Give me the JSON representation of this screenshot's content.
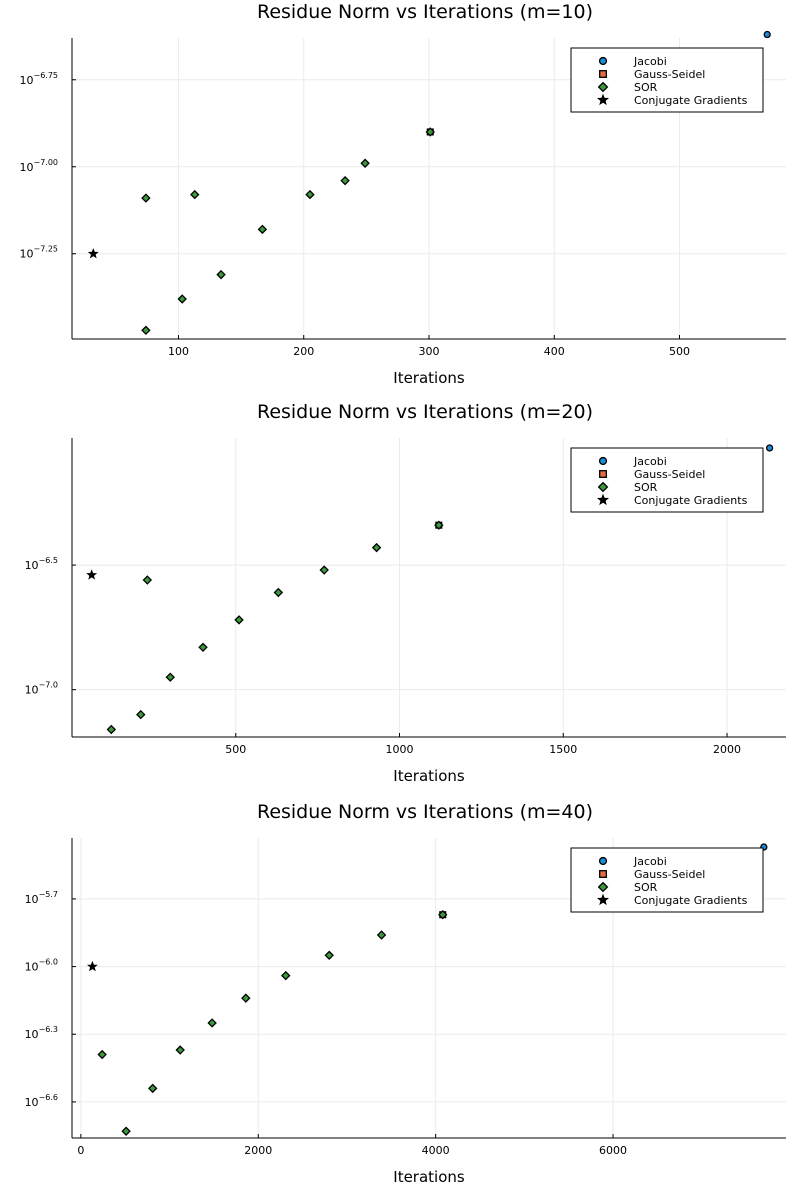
{
  "colors": {
    "jacobi": "#1f8ad6",
    "gauss_seidel": "#e66b46",
    "sor": "#3b9a3b",
    "cg": "#000000"
  },
  "chart_data": [
    {
      "type": "scatter",
      "title": "Residue Norm vs Iterations (m=10)",
      "xlabel": "Iterations",
      "ylabel": "",
      "yscale": "log10",
      "xlim": [
        15,
        585
      ],
      "ylim_log10": [
        -7.495,
        -6.63
      ],
      "xticks": [
        100,
        200,
        300,
        400,
        500
      ],
      "yticks_log10": [
        -7.25,
        -7.0,
        -6.75
      ],
      "ytick_labels": [
        "−7.25",
        "−7.00",
        "−6.75"
      ],
      "grid": true,
      "legend_position": "top-right",
      "series": [
        {
          "name": "Jacobi",
          "marker": "circle",
          "points": [
            [
              570,
              -6.62
            ]
          ]
        },
        {
          "name": "Gauss-Seidel",
          "marker": "square",
          "points": [
            [
              301,
              -6.9
            ]
          ]
        },
        {
          "name": "SOR",
          "marker": "diamond",
          "points": [
            [
              74,
              -7.09
            ],
            [
              113,
              -7.08
            ],
            [
              167,
              -7.18
            ],
            [
              205,
              -7.08
            ],
            [
              233,
              -7.04
            ],
            [
              249,
              -6.99
            ],
            [
              301,
              -6.9
            ],
            [
              134,
              -7.31
            ],
            [
              103,
              -7.38
            ],
            [
              74,
              -7.47
            ]
          ]
        },
        {
          "name": "Conjugate Gradients",
          "marker": "star",
          "points": [
            [
              32,
              -7.25
            ]
          ]
        }
      ]
    },
    {
      "type": "scatter",
      "title": "Residue Norm vs Iterations (m=20)",
      "xlabel": "Iterations",
      "ylabel": "",
      "yscale": "log10",
      "xlim": [
        0,
        2180
      ],
      "ylim_log10": [
        -7.19,
        -5.99
      ],
      "xticks": [
        500,
        1000,
        1500,
        2000
      ],
      "yticks_log10": [
        -7.0,
        -6.5
      ],
      "ytick_labels": [
        "−7.0",
        "−6.5"
      ],
      "grid": true,
      "legend_position": "top-right",
      "series": [
        {
          "name": "Jacobi",
          "marker": "circle",
          "points": [
            [
              2130,
              -6.03
            ]
          ]
        },
        {
          "name": "Gauss-Seidel",
          "marker": "square",
          "points": [
            [
              1120,
              -6.34
            ]
          ]
        },
        {
          "name": "SOR",
          "marker": "diamond",
          "points": [
            [
              230,
              -6.56
            ],
            [
              770,
              -6.52
            ],
            [
              930,
              -6.43
            ],
            [
              1120,
              -6.34
            ],
            [
              630,
              -6.61
            ],
            [
              510,
              -6.72
            ],
            [
              400,
              -6.83
            ],
            [
              300,
              -6.95
            ],
            [
              210,
              -7.1
            ],
            [
              120,
              -7.16
            ]
          ]
        },
        {
          "name": "Conjugate Gradients",
          "marker": "star",
          "points": [
            [
              60,
              -6.54
            ]
          ]
        }
      ]
    },
    {
      "type": "scatter",
      "title": "Residue Norm vs Iterations (m=40)",
      "xlabel": "Iterations",
      "ylabel": "",
      "yscale": "log10",
      "xlim": [
        -100,
        7950
      ],
      "ylim_log10": [
        -6.76,
        -5.43
      ],
      "xticks": [
        0,
        2000,
        4000,
        6000
      ],
      "yticks_log10": [
        -6.6,
        -6.3,
        -6.0,
        -5.7
      ],
      "ytick_labels": [
        "−6.6",
        "−6.3",
        "−6.0",
        "−5.7"
      ],
      "grid": true,
      "legend_position": "top-right",
      "series": [
        {
          "name": "Jacobi",
          "marker": "circle",
          "points": [
            [
              7700,
              -5.47
            ]
          ]
        },
        {
          "name": "Gauss-Seidel",
          "marker": "square",
          "points": [
            [
              4080,
              -5.77
            ]
          ]
        },
        {
          "name": "SOR",
          "marker": "diamond",
          "points": [
            [
              240,
              -6.39
            ],
            [
              510,
              -6.73
            ],
            [
              810,
              -6.54
            ],
            [
              1120,
              -6.37
            ],
            [
              1480,
              -6.25
            ],
            [
              1860,
              -6.14
            ],
            [
              2310,
              -6.04
            ],
            [
              2800,
              -5.95
            ],
            [
              3390,
              -5.86
            ],
            [
              4080,
              -5.77
            ]
          ]
        },
        {
          "name": "Conjugate Gradients",
          "marker": "star",
          "points": [
            [
              130,
              -6.0
            ]
          ]
        }
      ]
    }
  ]
}
